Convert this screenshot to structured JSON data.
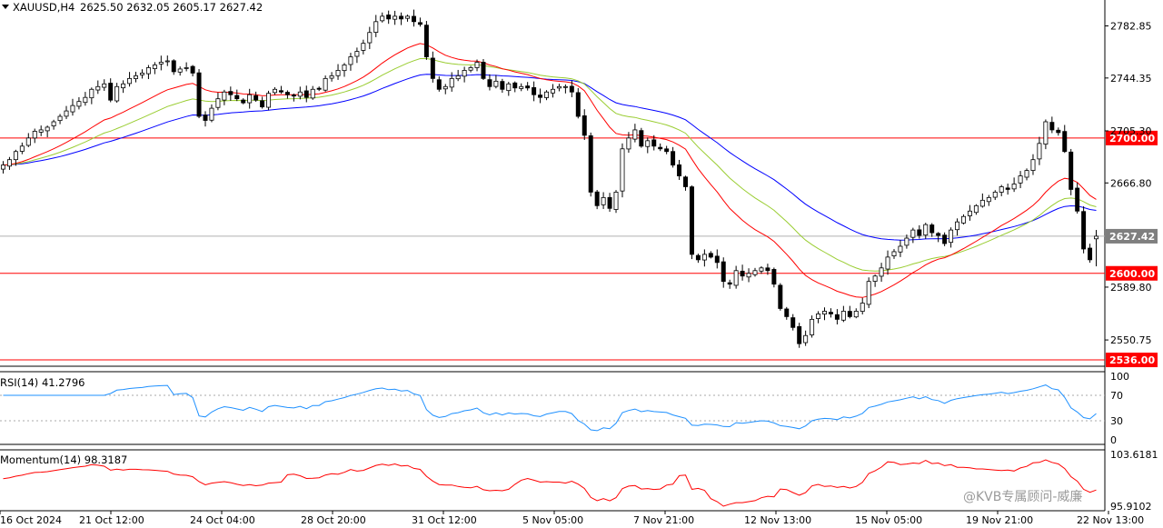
{
  "header": {
    "symbol": "XAUUSD,H4",
    "ohlc": "2625.50 2632.05 2605.17 2627.42"
  },
  "watermark": "@KVB专属顾问-威廉",
  "chart_data": [
    {
      "type": "candlestick",
      "title": "XAUUSD,H4",
      "price_ticks": [
        "2782.85",
        "2744.35",
        "2705.30",
        "2666.80",
        "2589.80",
        "2550.75"
      ],
      "ylim": [
        2532,
        2802
      ],
      "x_labels": [
        "16 Oct 2024",
        "21 Oct 12:00",
        "24 Oct 04:00",
        "28 Oct 20:00",
        "31 Oct 12:00",
        "5 Nov 05:00",
        "7 Nov 21:00",
        "12 Nov 13:00",
        "15 Nov 05:00",
        "19 Nov 21:00",
        "22 Nov 13:00"
      ],
      "current_price": "2627.42",
      "horizontal_levels": [
        {
          "label": "2700.00",
          "value": 2700.0,
          "color": "#ff0000"
        },
        {
          "label": "2600.00",
          "value": 2600.0,
          "color": "#ff0000"
        },
        {
          "label": "2536.00",
          "value": 2536.0,
          "color": "#ff0000"
        }
      ],
      "closes": [
        2680,
        2684,
        2690,
        2694,
        2700,
        2705,
        2706,
        2708,
        2712,
        2716,
        2720,
        2724,
        2727,
        2730,
        2736,
        2738,
        2740,
        2728,
        2738,
        2740,
        2744,
        2746,
        2748,
        2752,
        2754,
        2756,
        2757,
        2749,
        2751,
        2752,
        2748,
        2716,
        2713,
        2722,
        2729,
        2734,
        2732,
        2729,
        2726,
        2732,
        2728,
        2723,
        2733,
        2736,
        2734,
        2732,
        2731,
        2734,
        2730,
        2736,
        2736,
        2744,
        2746,
        2750,
        2754,
        2760,
        2764,
        2770,
        2778,
        2786,
        2790,
        2788,
        2790,
        2788,
        2790,
        2786,
        2784,
        2760,
        2744,
        2736,
        2738,
        2744,
        2746,
        2750,
        2752,
        2756,
        2744,
        2738,
        2742,
        2736,
        2740,
        2737,
        2738,
        2737,
        2732,
        2730,
        2734,
        2736,
        2738,
        2738,
        2734,
        2716,
        2702,
        2660,
        2650,
        2656,
        2648,
        2660,
        2692,
        2700,
        2706,
        2694,
        2698,
        2694,
        2692,
        2690,
        2680,
        2672,
        2664,
        2614,
        2610,
        2614,
        2612,
        2608,
        2594,
        2592,
        2602,
        2598,
        2600,
        2602,
        2604,
        2602,
        2592,
        2574,
        2568,
        2560,
        2548,
        2554,
        2566,
        2570,
        2572,
        2570,
        2566,
        2572,
        2568,
        2572,
        2578,
        2594,
        2598,
        2604,
        2612,
        2616,
        2620,
        2626,
        2632,
        2628,
        2636,
        2630,
        2628,
        2622,
        2632,
        2638,
        2642,
        2646,
        2650,
        2654,
        2656,
        2660,
        2664,
        2662,
        2666,
        2672,
        2676,
        2684,
        2696,
        2712,
        2706,
        2704,
        2690,
        2662,
        2646,
        2618,
        2610,
        2627.42
      ],
      "ma_red_period": 0,
      "rsi": {
        "label": "RSI(14) 41.2796",
        "ticks": [
          "100",
          "70",
          "30",
          "0"
        ],
        "levels": [
          70,
          30
        ],
        "ylim": [
          0,
          100
        ]
      },
      "momentum": {
        "label": "Momentum(14) 98.3187",
        "ticks": [
          "103.6181",
          "95.9102"
        ],
        "ylim": [
          95.9102,
          103.6181
        ]
      }
    }
  ],
  "colors": {
    "ma_fast": "#ff0000",
    "ma_mid": "#9acd32",
    "ma_slow": "#0000ff",
    "rsi_line": "#1e90ff",
    "momentum_line": "#ff0000",
    "level_box": "#ff0000",
    "price_box": "#7f7f7f",
    "candle_up_fill": "#ffffff",
    "candle_down_fill": "#000000"
  }
}
